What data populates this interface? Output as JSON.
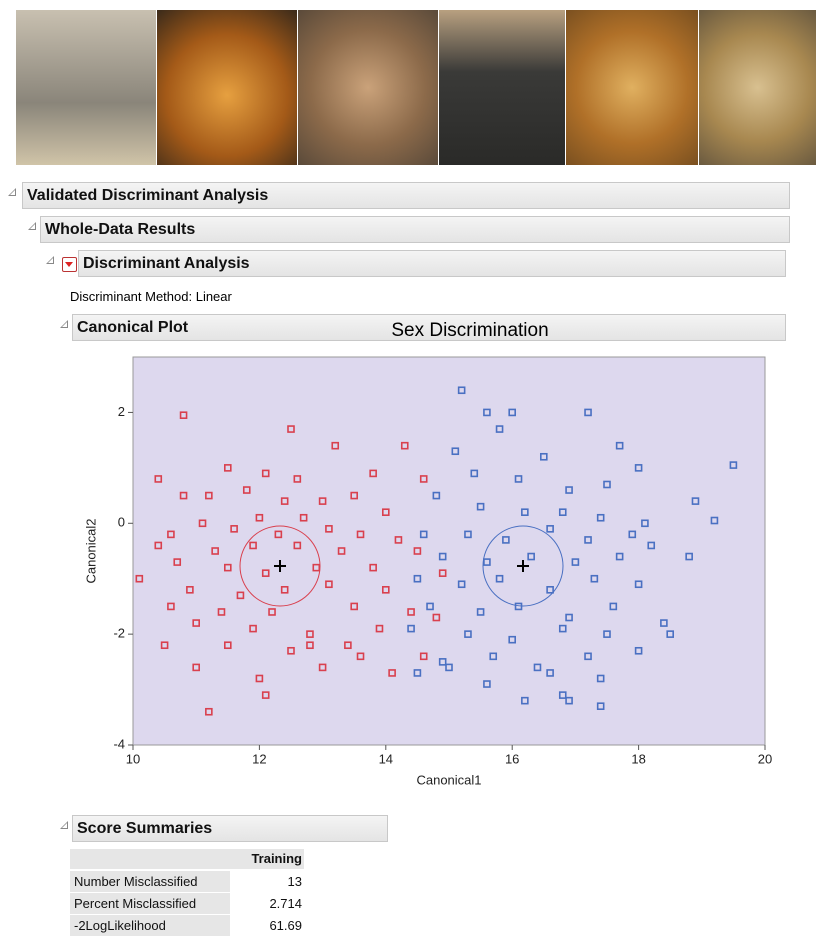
{
  "report": {
    "title": "Validated Discriminant Analysis",
    "section": "Whole-Data Results",
    "analysis": "Discriminant Analysis",
    "method": "Discriminant Method: Linear",
    "plot_header": "Canonical Plot",
    "summary_header": "Score Summaries"
  },
  "chart_data": {
    "type": "scatter",
    "title": "Sex Discrimination",
    "xlabel": "Canonical1",
    "ylabel": "Canonical2",
    "xlim": [
      10,
      20
    ],
    "ylim": [
      -4,
      3
    ],
    "xticks": [
      10,
      12,
      14,
      16,
      18,
      20
    ],
    "yticks": [
      -4,
      -2,
      0,
      2
    ],
    "background": "#ddd8ee",
    "series": [
      {
        "color": "#d9404e",
        "x": [
          10.8,
          12.5,
          13.2,
          14.3,
          11.5,
          12.1,
          12.6,
          13.8,
          14.6,
          10.4,
          10.8,
          11.2,
          11.8,
          12.4,
          13.0,
          13.5,
          14.0,
          10.6,
          11.1,
          11.6,
          12.0,
          12.3,
          12.7,
          13.1,
          13.6,
          14.2,
          10.4,
          11.3,
          11.9,
          12.6,
          13.3,
          14.5,
          10.7,
          11.5,
          12.1,
          12.9,
          13.8,
          14.9,
          10.1,
          10.9,
          11.7,
          12.4,
          13.1,
          14.0,
          10.6,
          11.4,
          12.2,
          13.5,
          14.4,
          11.0,
          11.9,
          12.8,
          13.9,
          10.5,
          11.5,
          12.5,
          13.4,
          14.6,
          11.0,
          12.0,
          13.0,
          14.1,
          12.1,
          11.2,
          12.8,
          13.6,
          14.8
        ],
        "values": [
          1.95,
          1.7,
          1.4,
          1.4,
          1.0,
          0.9,
          0.8,
          0.9,
          0.8,
          0.8,
          0.5,
          0.5,
          0.6,
          0.4,
          0.4,
          0.5,
          0.2,
          -0.2,
          0.0,
          -0.1,
          0.1,
          -0.2,
          0.1,
          -0.1,
          -0.2,
          -0.3,
          -0.4,
          -0.5,
          -0.4,
          -0.4,
          -0.5,
          -0.5,
          -0.7,
          -0.8,
          -0.9,
          -0.8,
          -0.8,
          -0.9,
          -1.0,
          -1.2,
          -1.3,
          -1.2,
          -1.1,
          -1.2,
          -1.5,
          -1.6,
          -1.6,
          -1.5,
          -1.6,
          -1.8,
          -1.9,
          -2.0,
          -1.9,
          -2.2,
          -2.2,
          -2.3,
          -2.2,
          -2.4,
          -2.6,
          -2.8,
          -2.6,
          -2.7,
          -3.1,
          -3.4,
          -2.2,
          -2.4,
          -1.7
        ]
      },
      {
        "color": "#4a70c2",
        "x": [
          15.2,
          15.6,
          16.0,
          17.2,
          15.8,
          17.7,
          15.1,
          16.5,
          18.0,
          19.5,
          15.4,
          16.1,
          16.9,
          17.5,
          18.9,
          19.2,
          14.8,
          15.5,
          16.2,
          16.8,
          17.4,
          18.1,
          14.6,
          15.3,
          15.9,
          16.6,
          17.2,
          17.9,
          14.9,
          15.6,
          16.3,
          17.0,
          17.7,
          18.2,
          18.8,
          14.5,
          15.2,
          15.8,
          16.6,
          17.3,
          18.0,
          14.7,
          15.5,
          16.1,
          16.9,
          17.6,
          14.4,
          15.3,
          16.0,
          16.8,
          17.5,
          18.4,
          14.9,
          15.7,
          16.4,
          17.2,
          18.0,
          14.5,
          15.6,
          16.6,
          17.4,
          16.2,
          16.8,
          17.4,
          16.9,
          15.0,
          18.5
        ],
        "values": [
          2.4,
          2.0,
          2.0,
          2.0,
          1.7,
          1.4,
          1.3,
          1.2,
          1.0,
          1.05,
          0.9,
          0.8,
          0.6,
          0.7,
          0.4,
          0.05,
          0.5,
          0.3,
          0.2,
          0.2,
          0.1,
          0.0,
          -0.2,
          -0.2,
          -0.3,
          -0.1,
          -0.3,
          -0.2,
          -0.6,
          -0.7,
          -0.6,
          -0.7,
          -0.6,
          -0.4,
          -0.6,
          -1.0,
          -1.1,
          -1.0,
          -1.2,
          -1.0,
          -1.1,
          -1.5,
          -1.6,
          -1.5,
          -1.7,
          -1.5,
          -1.9,
          -2.0,
          -2.1,
          -1.9,
          -2.0,
          -1.8,
          -2.5,
          -2.4,
          -2.6,
          -2.4,
          -2.3,
          -2.7,
          -2.9,
          -2.7,
          -2.8,
          -3.2,
          -3.1,
          -3.3,
          -3.2,
          -2.6,
          -2.0
        ]
      }
    ]
  },
  "table": {
    "columns": [
      "Training"
    ],
    "rows": [
      [
        "Number Misclassified",
        13
      ],
      [
        "Percent Misclassified",
        2.714
      ],
      [
        "-2LogLikelihood",
        61.69
      ]
    ]
  }
}
